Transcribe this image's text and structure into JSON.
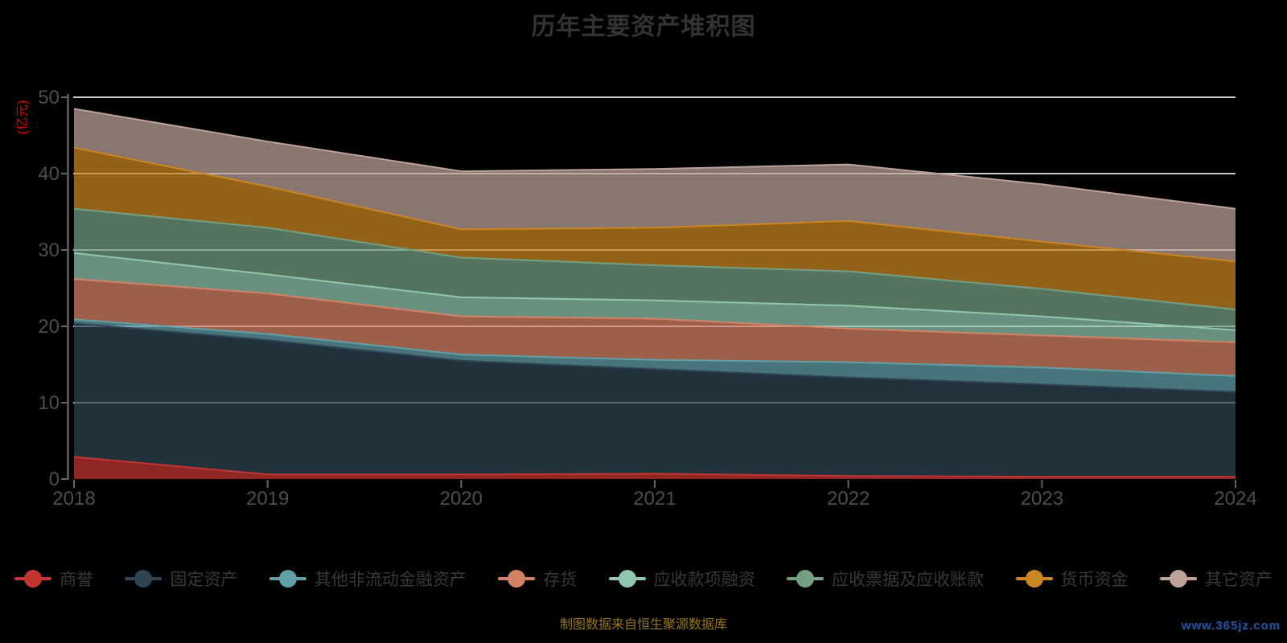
{
  "title": "历年主要资产堆积图",
  "y_axis_unit": "(亿元)",
  "footer": {
    "source_note": "制图数据来自恒生聚源数据库",
    "watermark": "www.365jz.com"
  },
  "colors": {
    "background": "#000000",
    "title_text": "#333333",
    "axis_label": "#4d4d4d",
    "axis_line": "#777777",
    "axis_tick": "#666666",
    "grid_line": "#cccccc",
    "legend_text": "#383838",
    "y_axis_unit_text": "#e60000",
    "source_note_text": "#96761d",
    "watermark_text": "#2a4d8f"
  },
  "chart_data": {
    "type": "area",
    "stacked": true,
    "title": "历年主要资产堆积图",
    "x": [
      "2018",
      "2019",
      "2020",
      "2021",
      "2022",
      "2023",
      "2024"
    ],
    "xlabel": "",
    "ylabel": "(亿元)",
    "ylim": [
      0,
      50
    ],
    "yticks": [
      0,
      10,
      20,
      30,
      40,
      50
    ],
    "grid": true,
    "legend_position": "bottom",
    "area_opacity": 0.73,
    "series": [
      {
        "name": "商誉",
        "color": "#c23531",
        "values": [
          2.9,
          0.6,
          0.6,
          0.7,
          0.4,
          0.3,
          0.3
        ]
      },
      {
        "name": "固定资产",
        "color": "#2f4554",
        "values": [
          17.5,
          17.6,
          14.9,
          13.7,
          12.9,
          12.1,
          11.1
        ]
      },
      {
        "name": "其他非流动金融资产",
        "color": "#61a0a8",
        "values": [
          0.5,
          0.8,
          0.8,
          1.2,
          2.0,
          2.2,
          2.1
        ]
      },
      {
        "name": "存货",
        "color": "#d48265",
        "values": [
          5.3,
          5.3,
          5.0,
          5.4,
          4.4,
          4.2,
          4.4
        ]
      },
      {
        "name": "应收款项融资",
        "color": "#91c7ae",
        "values": [
          3.4,
          2.5,
          2.5,
          2.4,
          3.0,
          2.5,
          1.6
        ]
      },
      {
        "name": "应收票据及应收账款",
        "color": "#749f83",
        "values": [
          5.8,
          6.1,
          5.2,
          4.6,
          4.5,
          3.6,
          2.7
        ]
      },
      {
        "name": "货币资金",
        "color": "#ca8622",
        "values": [
          8.0,
          5.4,
          3.7,
          4.9,
          6.6,
          6.2,
          6.3
        ]
      },
      {
        "name": "其它资产",
        "color": "#bda29a",
        "values": [
          5.1,
          5.9,
          7.6,
          7.7,
          7.4,
          7.5,
          6.9
        ]
      }
    ]
  }
}
